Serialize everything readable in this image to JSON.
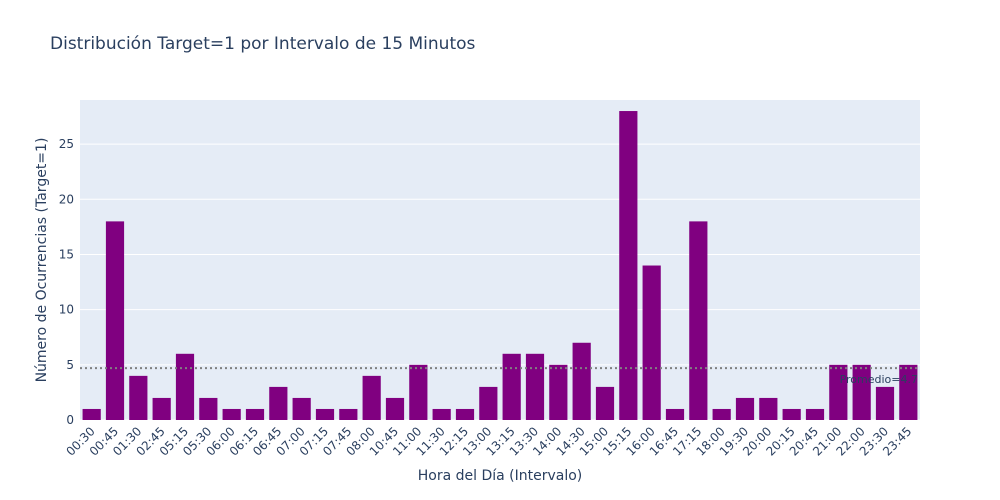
{
  "chart_data": {
    "type": "bar",
    "title": "Distribución Target=1 por Intervalo de 15 Minutos",
    "xlabel": "Hora del Día (Intervalo)",
    "ylabel": "Número de Ocurrencias (Target=1)",
    "ylim": [
      0,
      29
    ],
    "yticks": [
      0,
      5,
      10,
      15,
      20,
      25
    ],
    "grid": true,
    "bar_color": "#800080",
    "plot_bg": "#e5ecf6",
    "categories": [
      "00:30",
      "00:45",
      "01:30",
      "02:45",
      "05:15",
      "05:30",
      "06:00",
      "06:15",
      "06:45",
      "07:00",
      "07:15",
      "07:45",
      "08:00",
      "10:45",
      "11:00",
      "11:30",
      "12:15",
      "13:00",
      "13:15",
      "13:30",
      "14:00",
      "14:30",
      "15:00",
      "15:15",
      "16:00",
      "16:45",
      "17:15",
      "18:00",
      "19:30",
      "20:00",
      "20:15",
      "20:45",
      "21:00",
      "22:00",
      "23:30",
      "23:45"
    ],
    "values": [
      1,
      18,
      4,
      2,
      6,
      2,
      1,
      1,
      3,
      2,
      1,
      1,
      4,
      2,
      5,
      1,
      1,
      3,
      6,
      6,
      5,
      7,
      3,
      28,
      14,
      1,
      18,
      1,
      2,
      2,
      1,
      1,
      5,
      5,
      3,
      5
    ],
    "reference_line": {
      "value": 4.7,
      "label": "Promedio=4.7",
      "style": "dotted",
      "color": "#808080"
    }
  }
}
